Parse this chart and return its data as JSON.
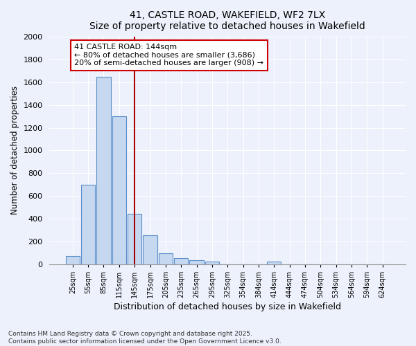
{
  "title": "41, CASTLE ROAD, WAKEFIELD, WF2 7LX",
  "subtitle": "Size of property relative to detached houses in Wakefield",
  "xlabel": "Distribution of detached houses by size in Wakefield",
  "ylabel": "Number of detached properties",
  "categories": [
    "25sqm",
    "55sqm",
    "85sqm",
    "115sqm",
    "145sqm",
    "175sqm",
    "205sqm",
    "235sqm",
    "265sqm",
    "295sqm",
    "325sqm",
    "354sqm",
    "384sqm",
    "414sqm",
    "444sqm",
    "474sqm",
    "504sqm",
    "534sqm",
    "564sqm",
    "594sqm",
    "624sqm"
  ],
  "values": [
    70,
    700,
    1650,
    1300,
    445,
    255,
    95,
    55,
    35,
    25,
    0,
    0,
    0,
    20,
    0,
    0,
    0,
    0,
    0,
    0,
    0
  ],
  "bar_color": "#c5d8f0",
  "bar_edge_color": "#5b8fc9",
  "vline_color": "#aa0000",
  "annotation_text": "41 CASTLE ROAD: 144sqm\n← 80% of detached houses are smaller (3,686)\n20% of semi-detached houses are larger (908) →",
  "annotation_box_color": "#ffffff",
  "annotation_box_edge_color": "#cc0000",
  "ylim": [
    0,
    2000
  ],
  "yticks": [
    0,
    200,
    400,
    600,
    800,
    1000,
    1200,
    1400,
    1600,
    1800,
    2000
  ],
  "footer_line1": "Contains HM Land Registry data © Crown copyright and database right 2025.",
  "footer_line2": "Contains public sector information licensed under the Open Government Licence v3.0.",
  "bg_color": "#edf1fb",
  "grid_color": "#ffffff"
}
